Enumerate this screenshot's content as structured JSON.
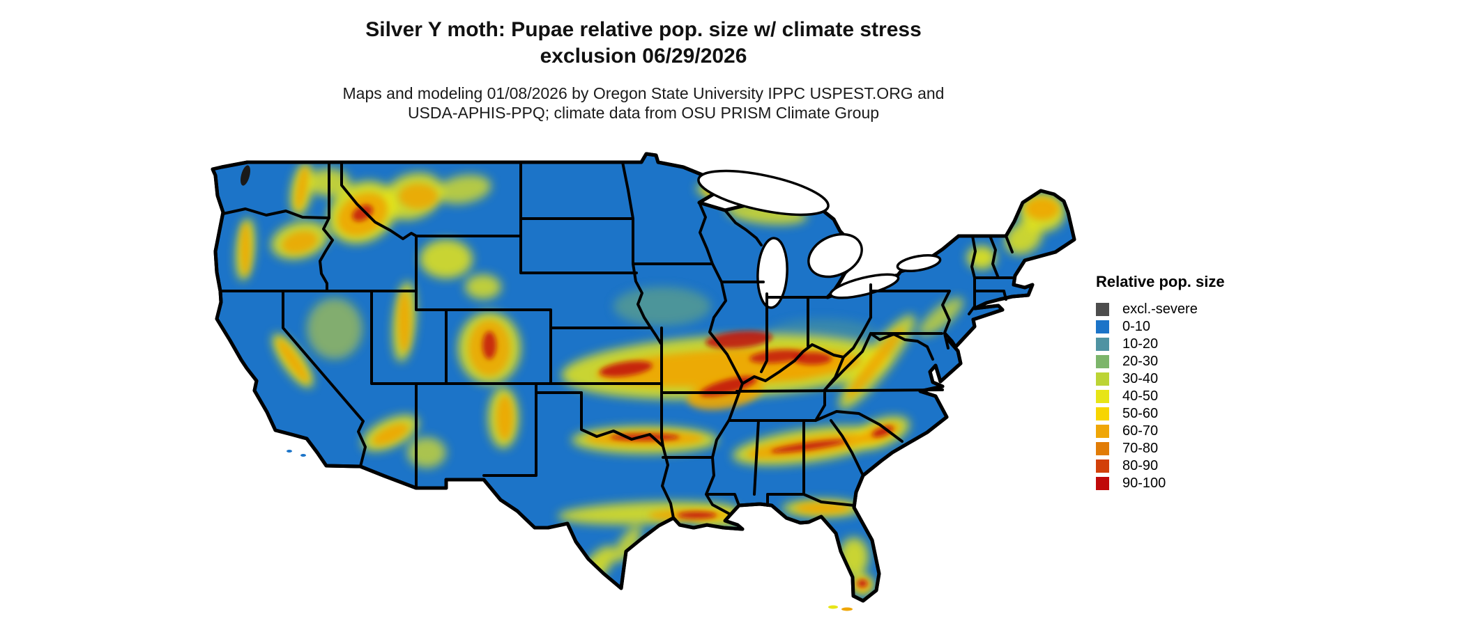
{
  "header": {
    "title_line1": "Silver Y moth: Pupae relative pop. size w/ climate stress",
    "title_line2": "exclusion 06/29/2026",
    "subtitle_line1": "Maps and modeling 01/08/2026 by Oregon State University IPPC USPEST.ORG and",
    "subtitle_line2": "USDA-APHIS-PPQ; climate data from OSU PRISM Climate Group"
  },
  "legend": {
    "title": "Relative pop. size",
    "items": [
      {
        "label": "excl.-severe",
        "color": "#4d4d4d"
      },
      {
        "label": "0-10",
        "color": "#1c74c8"
      },
      {
        "label": "10-20",
        "color": "#4f93a2"
      },
      {
        "label": "20-30",
        "color": "#7cb56b"
      },
      {
        "label": "30-40",
        "color": "#bcd435"
      },
      {
        "label": "40-50",
        "color": "#e7e517"
      },
      {
        "label": "50-60",
        "color": "#f7d500"
      },
      {
        "label": "60-70",
        "color": "#efa607"
      },
      {
        "label": "70-80",
        "color": "#e17c06"
      },
      {
        "label": "80-90",
        "color": "#d2400a"
      },
      {
        "label": "90-100",
        "color": "#c00909"
      }
    ]
  },
  "map": {
    "region": "Continental United States",
    "kind": "raster heat map of relative population size with state boundaries",
    "base_color": "#1c74c8",
    "boundary_color": "#000000",
    "water_color": "#ffffff",
    "background_color": "#ffffff"
  }
}
